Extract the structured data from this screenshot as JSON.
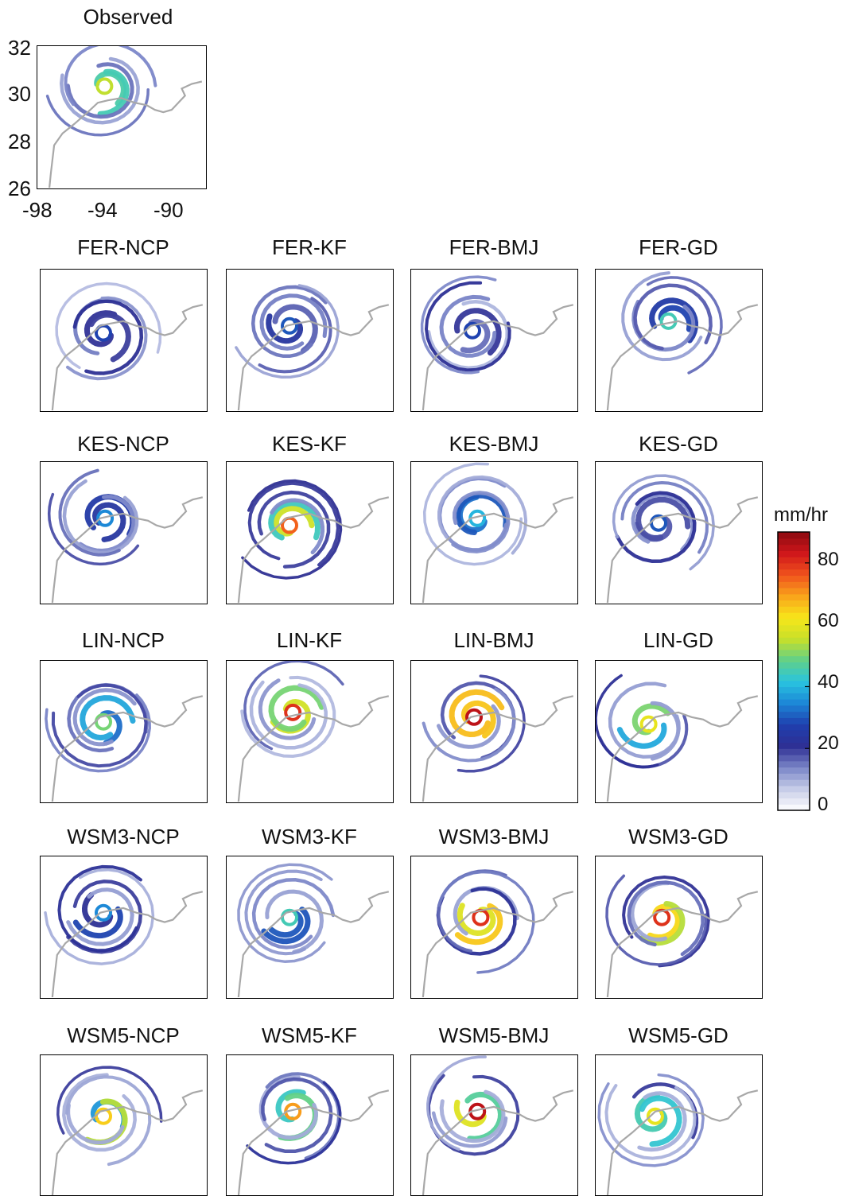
{
  "observed": {
    "title": "Observed",
    "y_ticks": [
      "32",
      "30",
      "28",
      "26"
    ],
    "x_ticks": [
      "-98",
      "-94",
      "-90"
    ]
  },
  "panel_titles": [
    [
      "FER-NCP",
      "FER-KF",
      "FER-BMJ",
      "FER-GD"
    ],
    [
      "KES-NCP",
      "KES-KF",
      "KES-BMJ",
      "KES-GD"
    ],
    [
      "LIN-NCP",
      "LIN-KF",
      "LIN-BMJ",
      "LIN-GD"
    ],
    [
      "WSM3-NCP",
      "WSM3-KF",
      "WSM3-BMJ",
      "WSM3-GD"
    ],
    [
      "WSM5-NCP",
      "WSM5-KF",
      "WSM5-BMJ",
      "WSM5-GD"
    ]
  ],
  "colorbar": {
    "label": "mm/hr",
    "ticks": [
      "80",
      "60",
      "40",
      "20",
      "0"
    ],
    "range": [
      0,
      90
    ],
    "colors": [
      "#ffffff",
      "#c7cde8",
      "#7b86c8",
      "#2e2f94",
      "#1f3fae",
      "#1c86d6",
      "#29c3e0",
      "#5fd08a",
      "#c7e02a",
      "#f7e61a",
      "#f9a51b",
      "#f0531c",
      "#d0171b",
      "#8c0a10"
    ]
  },
  "chart_data": {
    "type": "heatmap",
    "title": "",
    "xlabel": "",
    "ylabel": "",
    "xlim": [
      -98,
      -88
    ],
    "ylim": [
      26,
      32
    ],
    "x_ticks": [
      -98,
      -94,
      -90
    ],
    "y_ticks": [
      26,
      28,
      30,
      32
    ],
    "colorbar_units": "mm/hr",
    "colorbar_range": [
      0,
      90
    ],
    "colorbar_ticks": [
      0,
      20,
      40,
      60,
      80
    ],
    "panels": [
      {
        "name": "Observed",
        "center": [
          -94.0,
          30.3
        ],
        "peak": 55
      },
      {
        "name": "FER-NCP",
        "center": [
          -94.2,
          29.3
        ],
        "peak": 28
      },
      {
        "name": "FER-KF",
        "center": [
          -94.2,
          29.6
        ],
        "peak": 30
      },
      {
        "name": "FER-BMJ",
        "center": [
          -94.3,
          29.4
        ],
        "peak": 28
      },
      {
        "name": "FER-GD",
        "center": [
          -93.6,
          29.8
        ],
        "peak": 45
      },
      {
        "name": "KES-NCP",
        "center": [
          -94.1,
          29.6
        ],
        "peak": 35
      },
      {
        "name": "KES-KF",
        "center": [
          -94.2,
          29.3
        ],
        "peak": 75
      },
      {
        "name": "KES-BMJ",
        "center": [
          -94.0,
          29.6
        ],
        "peak": 40
      },
      {
        "name": "KES-GD",
        "center": [
          -94.2,
          29.4
        ],
        "peak": 30
      },
      {
        "name": "LIN-NCP",
        "center": [
          -94.2,
          29.4
        ],
        "peak": 50
      },
      {
        "name": "LIN-KF",
        "center": [
          -94.0,
          29.8
        ],
        "peak": 80
      },
      {
        "name": "LIN-BMJ",
        "center": [
          -94.2,
          29.6
        ],
        "peak": 85
      },
      {
        "name": "LIN-GD",
        "center": [
          -94.8,
          29.3
        ],
        "peak": 60
      },
      {
        "name": "WSM3-NCP",
        "center": [
          -94.2,
          29.6
        ],
        "peak": 35
      },
      {
        "name": "WSM3-KF",
        "center": [
          -94.2,
          29.4
        ],
        "peak": 45
      },
      {
        "name": "WSM3-BMJ",
        "center": [
          -93.8,
          29.4
        ],
        "peak": 80
      },
      {
        "name": "WSM3-GD",
        "center": [
          -94.0,
          29.4
        ],
        "peak": 80
      },
      {
        "name": "WSM5-NCP",
        "center": [
          -94.2,
          29.4
        ],
        "peak": 65
      },
      {
        "name": "WSM5-KF",
        "center": [
          -94.0,
          29.6
        ],
        "peak": 70
      },
      {
        "name": "WSM5-BMJ",
        "center": [
          -94.0,
          29.6
        ],
        "peak": 85
      },
      {
        "name": "WSM5-GD",
        "center": [
          -94.4,
          29.4
        ],
        "peak": 60
      }
    ]
  }
}
